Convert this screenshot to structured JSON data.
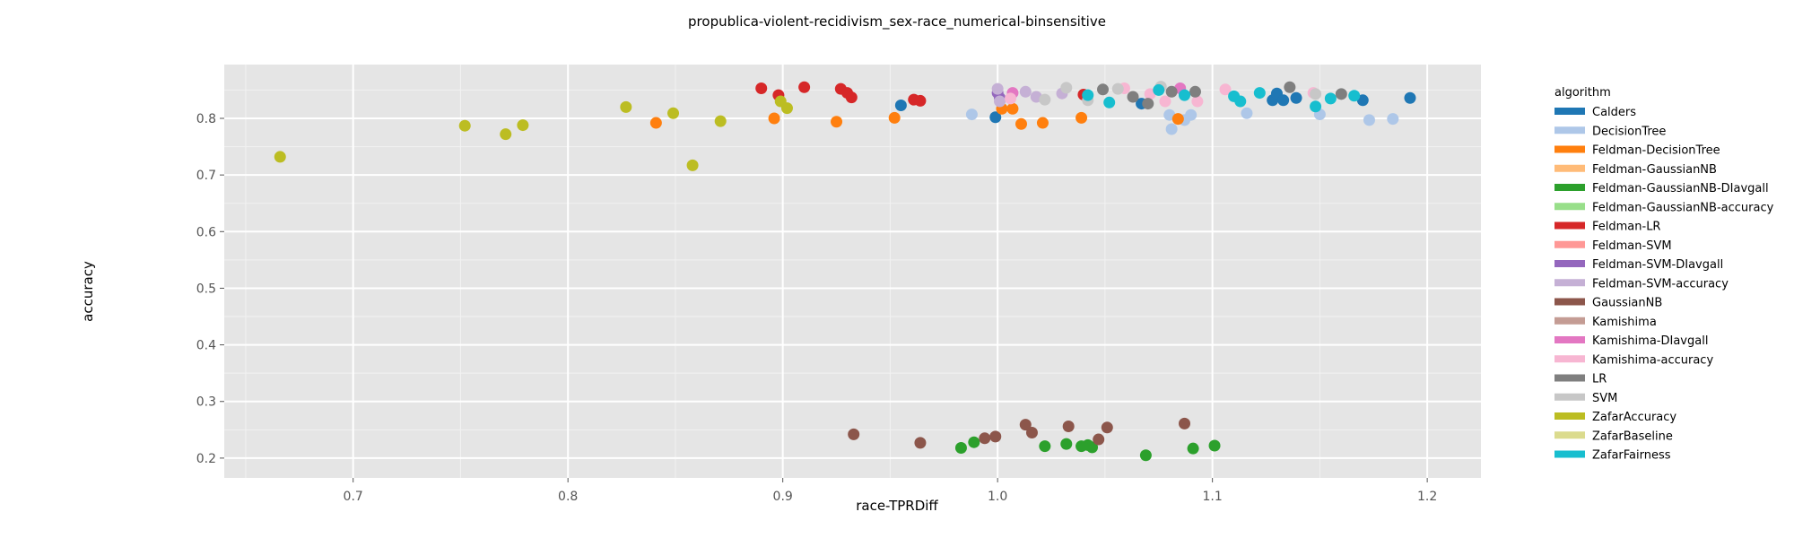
{
  "chart_data": {
    "type": "scatter",
    "title": "propublica-violent-recidivism_sex-race_numerical-binsensitive",
    "xlabel": "race-TPRDiff",
    "ylabel": "accuracy",
    "xlim": [
      0.64,
      1.225
    ],
    "ylim": [
      0.165,
      0.895
    ],
    "x_ticks": [
      0.7,
      0.8,
      0.9,
      1.0,
      1.1,
      1.2
    ],
    "x_tick_labels": [
      "0.7",
      "0.8",
      "0.9",
      "1.0",
      "1.1",
      "1.2"
    ],
    "y_ticks": [
      0.2,
      0.3,
      0.4,
      0.5,
      0.6,
      0.7,
      0.8
    ],
    "y_tick_labels": [
      "0.2",
      "0.3",
      "0.4",
      "0.5",
      "0.6",
      "0.7",
      "0.8"
    ],
    "grid": true,
    "legend_title": "algorithm",
    "legend_position": "right",
    "series": [
      {
        "name": "Calders",
        "color": "#1f77b4",
        "points": [
          [
            0.955,
            0.823
          ],
          [
            0.999,
            0.802
          ],
          [
            1.067,
            0.826
          ],
          [
            1.128,
            0.832
          ],
          [
            1.13,
            0.844
          ],
          [
            1.133,
            0.832
          ],
          [
            1.139,
            0.836
          ],
          [
            1.17,
            0.832
          ],
          [
            1.192,
            0.836
          ]
        ]
      },
      {
        "name": "DecisionTree",
        "color": "#aec7e8",
        "points": [
          [
            0.988,
            0.807
          ],
          [
            1.08,
            0.806
          ],
          [
            1.081,
            0.781
          ],
          [
            1.087,
            0.797
          ],
          [
            1.09,
            0.806
          ],
          [
            1.116,
            0.809
          ],
          [
            1.15,
            0.807
          ],
          [
            1.173,
            0.797
          ],
          [
            1.184,
            0.799
          ]
        ]
      },
      {
        "name": "Feldman-DecisionTree",
        "color": "#ff7f0e",
        "points": [
          [
            0.841,
            0.792
          ],
          [
            0.896,
            0.8
          ],
          [
            0.925,
            0.794
          ],
          [
            0.952,
            0.801
          ],
          [
            1.002,
            0.817
          ],
          [
            1.007,
            0.817
          ],
          [
            1.011,
            0.79
          ],
          [
            1.021,
            0.792
          ],
          [
            1.039,
            0.801
          ],
          [
            1.084,
            0.799
          ]
        ]
      },
      {
        "name": "Feldman-GaussianNB",
        "color": "#ffbb78",
        "points": []
      },
      {
        "name": "Feldman-GaussianNB-DIavgall",
        "color": "#2ca02c",
        "points": [
          [
            0.983,
            0.218
          ],
          [
            0.989,
            0.228
          ],
          [
            1.022,
            0.221
          ],
          [
            1.032,
            0.225
          ],
          [
            1.039,
            0.221
          ],
          [
            1.042,
            0.223
          ],
          [
            1.044,
            0.219
          ],
          [
            1.069,
            0.205
          ],
          [
            1.091,
            0.217
          ],
          [
            1.101,
            0.222
          ]
        ]
      },
      {
        "name": "Feldman-GaussianNB-accuracy",
        "color": "#98df8a",
        "points": []
      },
      {
        "name": "Feldman-LR",
        "color": "#d62728",
        "points": [
          [
            0.89,
            0.853
          ],
          [
            0.898,
            0.841
          ],
          [
            0.91,
            0.855
          ],
          [
            0.927,
            0.852
          ],
          [
            0.93,
            0.845
          ],
          [
            0.932,
            0.837
          ],
          [
            0.961,
            0.833
          ],
          [
            0.964,
            0.831
          ],
          [
            1.04,
            0.842
          ]
        ]
      },
      {
        "name": "Feldman-SVM",
        "color": "#ff9896",
        "points": []
      },
      {
        "name": "Feldman-SVM-DIavgall",
        "color": "#9467bd",
        "points": [
          [
            1.0,
            0.845
          ],
          [
            1.001,
            0.836
          ]
        ]
      },
      {
        "name": "Feldman-SVM-accuracy",
        "color": "#c5b0d5",
        "points": [
          [
            1.0,
            0.852
          ],
          [
            1.001,
            0.83
          ],
          [
            1.013,
            0.847
          ],
          [
            1.018,
            0.838
          ],
          [
            1.03,
            0.844
          ]
        ]
      },
      {
        "name": "GaussianNB",
        "color": "#8c564b",
        "points": [
          [
            0.933,
            0.242
          ],
          [
            0.964,
            0.227
          ],
          [
            0.994,
            0.235
          ],
          [
            0.999,
            0.238
          ],
          [
            1.013,
            0.259
          ],
          [
            1.016,
            0.245
          ],
          [
            1.033,
            0.256
          ],
          [
            1.047,
            0.233
          ],
          [
            1.051,
            0.254
          ],
          [
            1.087,
            0.261
          ]
        ]
      },
      {
        "name": "Kamishima",
        "color": "#c49c94",
        "points": []
      },
      {
        "name": "Kamishima-DIavgall",
        "color": "#e377c2",
        "points": [
          [
            1.007,
            0.845
          ],
          [
            1.085,
            0.853
          ]
        ]
      },
      {
        "name": "Kamishima-accuracy",
        "color": "#f7b6d2",
        "points": [
          [
            1.006,
            0.835
          ],
          [
            1.059,
            0.853
          ],
          [
            1.071,
            0.843
          ],
          [
            1.078,
            0.83
          ],
          [
            1.093,
            0.83
          ],
          [
            1.106,
            0.851
          ],
          [
            1.147,
            0.845
          ]
        ]
      },
      {
        "name": "LR",
        "color": "#7f7f7f",
        "points": [
          [
            1.049,
            0.851
          ],
          [
            1.063,
            0.838
          ],
          [
            1.07,
            0.826
          ],
          [
            1.081,
            0.847
          ],
          [
            1.092,
            0.847
          ],
          [
            1.136,
            0.855
          ],
          [
            1.16,
            0.843
          ]
        ]
      },
      {
        "name": "SVM",
        "color": "#c7c7c7",
        "points": [
          [
            1.022,
            0.833
          ],
          [
            1.032,
            0.854
          ],
          [
            1.042,
            0.832
          ],
          [
            1.056,
            0.852
          ],
          [
            1.076,
            0.856
          ],
          [
            1.148,
            0.843
          ]
        ]
      },
      {
        "name": "ZafarAccuracy",
        "color": "#bcbd22",
        "points": [
          [
            0.666,
            0.732
          ],
          [
            0.752,
            0.787
          ],
          [
            0.771,
            0.772
          ],
          [
            0.779,
            0.788
          ],
          [
            0.827,
            0.82
          ],
          [
            0.849,
            0.809
          ],
          [
            0.858,
            0.717
          ],
          [
            0.871,
            0.795
          ],
          [
            0.899,
            0.83
          ],
          [
            0.902,
            0.818
          ]
        ]
      },
      {
        "name": "ZafarBaseline",
        "color": "#dbdb8d",
        "points": []
      },
      {
        "name": "ZafarFairness",
        "color": "#17becf",
        "points": [
          [
            1.042,
            0.841
          ],
          [
            1.052,
            0.828
          ],
          [
            1.075,
            0.85
          ],
          [
            1.087,
            0.841
          ],
          [
            1.11,
            0.839
          ],
          [
            1.113,
            0.83
          ],
          [
            1.122,
            0.845
          ],
          [
            1.148,
            0.821
          ],
          [
            1.155,
            0.835
          ],
          [
            1.166,
            0.84
          ]
        ]
      }
    ]
  }
}
